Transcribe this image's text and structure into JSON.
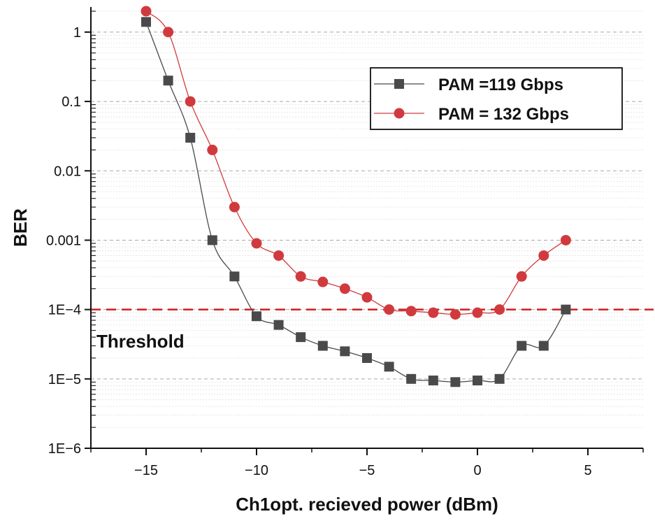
{
  "chart_data": {
    "type": "line",
    "title": "",
    "xlabel": "Ch1opt. recieved power (dBm)",
    "ylabel": "BER",
    "xlim": [
      -17.5,
      7.5
    ],
    "ylim": [
      1e-06,
      2.3
    ],
    "yscale": "log",
    "xticks": [
      -15,
      -10,
      -5,
      0,
      5
    ],
    "xtick_labels": [
      "−15",
      "−10",
      "−5",
      "0",
      "5"
    ],
    "yticks": [
      1,
      0.1,
      0.01,
      0.001,
      0.0001,
      1e-05,
      1e-06
    ],
    "ytick_labels": [
      "1",
      "0.1",
      "0.01",
      "0.001",
      "1E−4",
      "1E−5",
      "1E−6"
    ],
    "grid": true,
    "legend_position": "top-right",
    "series": [
      {
        "name": "PAM =119 Gbps",
        "marker": "square",
        "color": "#4a4a4a",
        "x": [
          -15,
          -14,
          -13,
          -12,
          -11,
          -10,
          -9,
          -8,
          -7,
          -6,
          -5,
          -4,
          -3,
          -2,
          -1,
          0,
          1,
          2,
          3,
          4
        ],
        "y": [
          1.4,
          0.2,
          0.03,
          0.001,
          0.0003,
          8e-05,
          6e-05,
          4e-05,
          3e-05,
          2.5e-05,
          2e-05,
          1.5e-05,
          1e-05,
          9.5e-06,
          9e-06,
          9.5e-06,
          1e-05,
          3e-05,
          3e-05,
          0.0001
        ]
      },
      {
        "name": "PAM = 132 Gbps",
        "marker": "circle",
        "color": "#d03a3e",
        "x": [
          -15,
          -14,
          -13,
          -12,
          -11,
          -10,
          -9,
          -8,
          -7,
          -6,
          -5,
          -4,
          -3,
          -2,
          -1,
          0,
          1,
          2,
          3,
          4
        ],
        "y": [
          2.0,
          1.0,
          0.1,
          0.02,
          0.003,
          0.0009,
          0.0006,
          0.0003,
          0.00025,
          0.0002,
          0.00015,
          0.0001,
          9.5e-05,
          9e-05,
          8.5e-05,
          9e-05,
          0.0001,
          0.0003,
          0.0006,
          0.001
        ]
      }
    ],
    "threshold": {
      "y": 0.0001,
      "label": "Threshold",
      "color": "#cc1f1f"
    }
  }
}
